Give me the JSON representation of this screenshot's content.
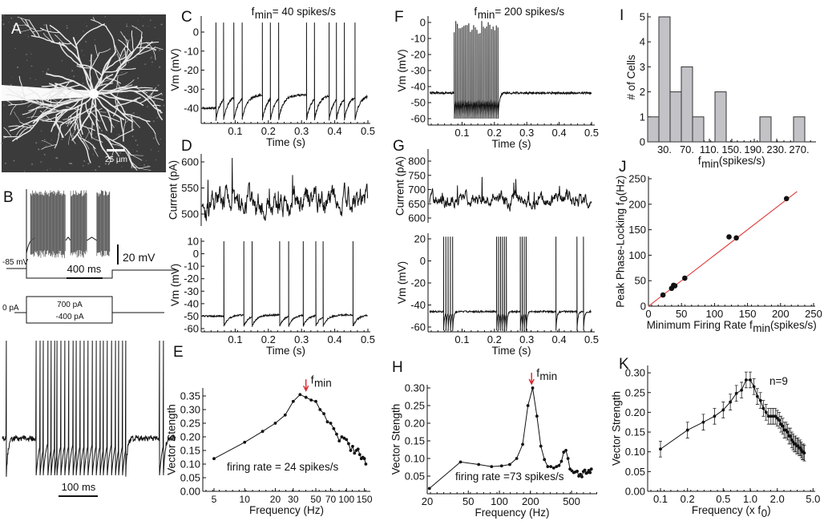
{
  "panel_labels": {
    "A": "A",
    "B": "B",
    "C": "C",
    "D": "D",
    "E": "E",
    "F": "F",
    "G": "G",
    "H": "H",
    "I": "I",
    "J": "J",
    "K": "K"
  },
  "panel_a": {
    "scale_bar_label": "25 µm"
  },
  "panel_b": {
    "resting_label": "-85 mV",
    "current_baseline_label": "0 pA",
    "step_up_label": "700 pA",
    "step_down_label": "-400 pA",
    "voltage_scale_label": "20 mV",
    "time_scale_label": "400 ms",
    "bottom_time_scale_label": "100 ms",
    "burst_windows_ms": [
      [
        45,
        435
      ],
      [
        490,
        670
      ],
      [
        780,
        925
      ]
    ],
    "bottom_trace_spike_times_ms": [
      10,
      86,
      96,
      104,
      116,
      124,
      133,
      139,
      149,
      159,
      169,
      180,
      188,
      198,
      208,
      218,
      229,
      239,
      249,
      257,
      267,
      278,
      288,
      296,
      306,
      314,
      400,
      410
    ]
  },
  "chart_data": [
    {
      "id": "C",
      "type": "line",
      "title": {
        "text": "f",
        "sub": "min",
        "after": " = 40 spikes/s"
      },
      "xlabel": "Time (s)",
      "ylabel": "Vm (mV)",
      "xlim": [
        0,
        0.5
      ],
      "ylim": [
        -48,
        8
      ],
      "xticks": [
        {
          "value": 0.1,
          "label": "0.1"
        },
        {
          "value": 0.2,
          "label": "0.2"
        },
        {
          "value": 0.3,
          "label": "0.3"
        },
        {
          "value": 0.4,
          "label": "0.4"
        },
        {
          "value": 0.5,
          "label": "0.5"
        }
      ],
      "yticks": [
        {
          "value": 0,
          "label": "0"
        },
        {
          "value": -10,
          "label": "-10"
        },
        {
          "value": -20,
          "label": "-20"
        },
        {
          "value": -30,
          "label": "-30"
        },
        {
          "value": -40,
          "label": "-40"
        }
      ],
      "spike_times": [
        0.042,
        0.065,
        0.096,
        0.121,
        0.182,
        0.206,
        0.231,
        0.315,
        0.339,
        0.383,
        0.405,
        0.429,
        0.461
      ],
      "spike_peak": 5,
      "trough": -46,
      "plateau": -33,
      "initial": -40
    },
    {
      "id": "D_current",
      "type": "line",
      "ylabel": "Current (pA)",
      "xlim": [
        0,
        0.5
      ],
      "ylim": [
        480,
        615
      ],
      "yticks": [
        {
          "value": 500,
          "label": "500"
        },
        {
          "value": 550,
          "label": "550"
        },
        {
          "value": 600,
          "label": "600"
        }
      ],
      "mean": 525,
      "range": [
        488,
        610
      ]
    },
    {
      "id": "D_vm",
      "type": "line",
      "xlabel": "Time (s)",
      "ylabel": "Vm (mV)",
      "xlim": [
        0,
        0.5
      ],
      "ylim": [
        -62,
        12
      ],
      "xticks": [
        {
          "value": 0.1,
          "label": "0.1"
        },
        {
          "value": 0.2,
          "label": "0.2"
        },
        {
          "value": 0.3,
          "label": "0.3"
        },
        {
          "value": 0.4,
          "label": "0.4"
        },
        {
          "value": 0.5,
          "label": "0.5"
        }
      ],
      "yticks": [
        {
          "value": 10,
          "label": "10"
        },
        {
          "value": 0,
          "label": "0"
        },
        {
          "value": -10,
          "label": "-10"
        },
        {
          "value": -20,
          "label": "-20"
        },
        {
          "value": -30,
          "label": "-30"
        },
        {
          "value": -40,
          "label": "-40"
        },
        {
          "value": -50,
          "label": "-50"
        },
        {
          "value": -60,
          "label": "-60"
        }
      ],
      "spike_times": [
        0.066,
        0.126,
        0.151,
        0.234,
        0.261,
        0.305,
        0.343,
        0.365,
        0.455
      ],
      "spike_peak": 10,
      "trough": -58,
      "plateau": -49,
      "initial": -50
    },
    {
      "id": "E",
      "type": "line",
      "xlabel": "Frequency (Hz)",
      "ylabel": "Vector Stength",
      "xscale": "log",
      "xlim": [
        4.5,
        165
      ],
      "ylim": [
        0,
        0.37
      ],
      "xticks": [
        {
          "value": 5,
          "label": "5"
        },
        {
          "value": 10,
          "label": "10"
        },
        {
          "value": 20,
          "label": "20"
        },
        {
          "value": 30,
          "label": "30"
        },
        {
          "value": 50,
          "label": "50"
        },
        {
          "value": 70,
          "label": "70"
        },
        {
          "value": 100,
          "label": "100"
        },
        {
          "value": 150,
          "label": "150"
        }
      ],
      "yticks": [
        {
          "value": 0,
          "label": "0.00"
        },
        {
          "value": 0.05,
          "label": "0.05"
        },
        {
          "value": 0.1,
          "label": "0.10"
        },
        {
          "value": 0.15,
          "label": "0.15"
        },
        {
          "value": 0.2,
          "label": "0.20"
        },
        {
          "value": 0.25,
          "label": "0.25"
        },
        {
          "value": 0.3,
          "label": "0.30"
        },
        {
          "value": 0.35,
          "label": "0.35"
        }
      ],
      "x": [
        5,
        10,
        15,
        20,
        25,
        30,
        35,
        40,
        45,
        50,
        55,
        60,
        65,
        70,
        75,
        80,
        85,
        90,
        95,
        100,
        105,
        110,
        115,
        120,
        125,
        130,
        135,
        140,
        145,
        150,
        155
      ],
      "y": [
        0.12,
        0.18,
        0.22,
        0.25,
        0.28,
        0.33,
        0.355,
        0.345,
        0.335,
        0.33,
        0.3,
        0.285,
        0.255,
        0.25,
        0.23,
        0.21,
        0.185,
        0.2,
        0.195,
        0.19,
        0.175,
        0.15,
        0.165,
        0.14,
        0.15,
        0.155,
        0.135,
        0.12,
        0.125,
        0.12,
        0.1
      ],
      "annotation": {
        "text": "firing rate = 24 spikes/s"
      },
      "marker": {
        "label": {
          "text": "f",
          "sub": "min"
        },
        "x": 40,
        "color": "#d8232a"
      }
    },
    {
      "id": "F",
      "type": "line",
      "title": {
        "text": "f",
        "sub": "min",
        "after": " = 200 spikes/s"
      },
      "xlabel": "Time (s)",
      "ylabel": "Vm (mV)",
      "xlim": [
        0,
        0.5
      ],
      "ylim": [
        -64,
        4
      ],
      "xticks": [
        {
          "value": 0.1,
          "label": "0.1"
        },
        {
          "value": 0.2,
          "label": "0.2"
        },
        {
          "value": 0.3,
          "label": "0.3"
        },
        {
          "value": 0.4,
          "label": "0.4"
        },
        {
          "value": 0.5,
          "label": "0.5"
        }
      ],
      "yticks": [
        {
          "value": 0,
          "label": "0"
        },
        {
          "value": -10,
          "label": "-10"
        },
        {
          "value": -20,
          "label": "-20"
        },
        {
          "value": -30,
          "label": "-30"
        },
        {
          "value": -40,
          "label": "-40"
        },
        {
          "value": -50,
          "label": "-50"
        },
        {
          "value": -60,
          "label": "-60"
        }
      ],
      "burst": {
        "start": 0.076,
        "end": 0.216,
        "rate_hz": 200
      },
      "spike_peak_range": [
        -8,
        1
      ],
      "trough": -60,
      "rest": -44
    },
    {
      "id": "G_current",
      "type": "line",
      "ylabel": "Current (pA)",
      "xlim": [
        0,
        0.5
      ],
      "ylim": [
        580,
        845
      ],
      "yticks": [
        {
          "value": 600,
          "label": "600"
        },
        {
          "value": 650,
          "label": "650"
        },
        {
          "value": 700,
          "label": "700"
        },
        {
          "value": 750,
          "label": "750"
        },
        {
          "value": 800,
          "label": "800"
        }
      ],
      "mean": 665,
      "range": [
        588,
        835
      ]
    },
    {
      "id": "G_vm",
      "type": "line",
      "xlabel": "Time (s)",
      "ylabel": "Vm (mV)",
      "xlim": [
        0,
        0.5
      ],
      "ylim": [
        -64,
        25
      ],
      "xticks": [
        {
          "value": 0.1,
          "label": "0.1"
        },
        {
          "value": 0.2,
          "label": "0.2"
        },
        {
          "value": 0.3,
          "label": "0.3"
        },
        {
          "value": 0.4,
          "label": "0.4"
        },
        {
          "value": 0.5,
          "label": "0.5"
        }
      ],
      "yticks": [
        {
          "value": 20,
          "label": "20"
        },
        {
          "value": 0,
          "label": "0"
        },
        {
          "value": -20,
          "label": "-20"
        },
        {
          "value": -40,
          "label": "-40"
        },
        {
          "value": -60,
          "label": "-60"
        }
      ],
      "spike_times": [
        0.043,
        0.05,
        0.057,
        0.064,
        0.071,
        0.207,
        0.213,
        0.219,
        0.225,
        0.231,
        0.237,
        0.28,
        0.286,
        0.292,
        0.298,
        0.39,
        0.455,
        0.475
      ],
      "spike_peak": 22,
      "trough": -63,
      "rest": -46
    },
    {
      "id": "H",
      "type": "line",
      "xlabel": "Frequency (Hz)",
      "ylabel": "Vector Stength",
      "xscale": "log",
      "xlim": [
        20,
        800
      ],
      "ylim": [
        0,
        0.31
      ],
      "xticks": [
        {
          "value": 20,
          "label": "20"
        },
        {
          "value": 50,
          "label": "50"
        },
        {
          "value": 100,
          "label": "100"
        },
        {
          "value": 200,
          "label": "200"
        },
        {
          "value": 500,
          "label": "500"
        }
      ],
      "yticks": [
        {
          "value": 0.05,
          "label": "0.05"
        },
        {
          "value": 0.1,
          "label": "0.10"
        },
        {
          "value": 0.15,
          "label": "0.15"
        },
        {
          "value": 0.2,
          "label": "0.20"
        },
        {
          "value": 0.25,
          "label": "0.25"
        },
        {
          "value": 0.3,
          "label": "0.30"
        }
      ],
      "x": [
        21,
        42,
        63,
        84,
        105,
        126,
        147,
        168,
        189,
        210,
        231,
        252,
        273,
        294,
        315,
        336,
        357,
        378,
        399,
        420,
        441,
        462,
        483,
        504,
        525,
        546,
        567,
        588,
        609,
        630,
        651,
        672,
        693,
        714,
        735,
        756,
        777
      ],
      "y": [
        0.015,
        0.09,
        0.083,
        0.077,
        0.079,
        0.083,
        0.1,
        0.14,
        0.25,
        0.3,
        0.22,
        0.135,
        0.097,
        0.077,
        0.077,
        0.073,
        0.077,
        0.08,
        0.092,
        0.118,
        0.123,
        0.1,
        0.07,
        0.065,
        0.06,
        0.062,
        0.064,
        0.05,
        0.055,
        0.048,
        0.063,
        0.067,
        0.058,
        0.06,
        0.066,
        0.06,
        0.07
      ],
      "annotation": {
        "text": "firing rate =73 spikes/s"
      },
      "marker": {
        "label": {
          "text": "f",
          "sub": "min"
        },
        "x": 205,
        "color": "#d8232a"
      }
    },
    {
      "id": "I",
      "type": "bar",
      "xlabel": {
        "text": "f",
        "sub": "min",
        "after": " (spikes/s)"
      },
      "ylabel": "# of Cells",
      "xlim": [
        0,
        290
      ],
      "ylim": [
        0,
        5
      ],
      "xticks": [
        {
          "value": 30,
          "label": "30."
        },
        {
          "value": 70,
          "label": "70."
        },
        {
          "value": 110,
          "label": "110."
        },
        {
          "value": 150,
          "label": "150."
        },
        {
          "value": 190,
          "label": "190."
        },
        {
          "value": 230,
          "label": "230."
        },
        {
          "value": 270,
          "label": "270."
        }
      ],
      "yticks": [
        {
          "value": 0,
          "label": "0"
        },
        {
          "value": 1,
          "label": "1"
        },
        {
          "value": 2,
          "label": "2"
        },
        {
          "value": 3,
          "label": "3"
        },
        {
          "value": 4,
          "label": "4"
        },
        {
          "value": 5,
          "label": "5"
        }
      ],
      "bin_width": 20,
      "bins": [
        {
          "start": 0,
          "count": 1
        },
        {
          "start": 20,
          "count": 5
        },
        {
          "start": 40,
          "count": 2
        },
        {
          "start": 60,
          "count": 3
        },
        {
          "start": 80,
          "count": 1
        },
        {
          "start": 120,
          "count": 2
        },
        {
          "start": 200,
          "count": 1
        },
        {
          "start": 260,
          "count": 1
        }
      ],
      "bar_color": "#c3c3c7"
    },
    {
      "id": "J",
      "type": "scatter",
      "xlabel": {
        "text": "Minimum Firing Rate f",
        "sub": "min",
        "after": " (spikes/s)"
      },
      "ylabel": {
        "text": "Peak Phase-Locking f",
        "sub": "0",
        "after": " (Hz)"
      },
      "xlim": [
        0,
        250
      ],
      "ylim": [
        0,
        250
      ],
      "xticks": [
        {
          "value": 0,
          "label": "0"
        },
        {
          "value": 50,
          "label": "50"
        },
        {
          "value": 100,
          "label": "100"
        },
        {
          "value": 150,
          "label": "150"
        },
        {
          "value": 200,
          "label": "200"
        },
        {
          "value": 250,
          "label": "250"
        }
      ],
      "yticks": [
        {
          "value": 0,
          "label": "0"
        },
        {
          "value": 50,
          "label": "50"
        },
        {
          "value": 100,
          "label": "100"
        },
        {
          "value": 150,
          "label": "150"
        },
        {
          "value": 200,
          "label": "200"
        },
        {
          "value": 250,
          "label": "250"
        }
      ],
      "x": [
        22,
        35,
        38,
        40,
        55,
        122,
        133,
        209
      ],
      "y": [
        22,
        35,
        41,
        40,
        55,
        136,
        134,
        211
      ],
      "fit_line": {
        "slope": 1,
        "intercept": 0,
        "x_range": [
          0,
          225
        ],
        "color": "#e03a3a"
      }
    },
    {
      "id": "K",
      "type": "line",
      "xlabel": {
        "text": "Frequency (x f",
        "sub": "0",
        "after": ")"
      },
      "ylabel": "Vector Strength",
      "xscale": "log",
      "xlim": [
        0.07,
        5
      ],
      "ylim": [
        0,
        0.31
      ],
      "xticks": [
        {
          "value": 0.1,
          "label": "0.1"
        },
        {
          "value": 0.2,
          "label": "0.2"
        },
        {
          "value": 0.5,
          "label": "0.5"
        },
        {
          "value": 1,
          "label": "1.0"
        },
        {
          "value": 2,
          "label": "2.0"
        },
        {
          "value": 5,
          "label": "5.0"
        }
      ],
      "yticks": [
        {
          "value": 0,
          "label": "0.00"
        },
        {
          "value": 0.05,
          "label": "0.05"
        },
        {
          "value": 0.1,
          "label": "0.10"
        },
        {
          "value": 0.15,
          "label": "0.15"
        },
        {
          "value": 0.2,
          "label": "0.20"
        },
        {
          "value": 0.25,
          "label": "0.25"
        },
        {
          "value": 0.3,
          "label": "0.30"
        }
      ],
      "x": [
        0.1,
        0.2,
        0.3,
        0.4,
        0.5,
        0.6,
        0.7,
        0.8,
        0.9,
        1.0,
        1.1,
        1.2,
        1.3,
        1.4,
        1.5,
        1.6,
        1.7,
        1.8,
        1.9,
        2.0,
        2.1,
        2.2,
        2.3,
        2.4,
        2.5,
        2.6,
        2.7,
        2.8,
        2.9,
        3.0,
        3.1,
        3.2,
        3.3,
        3.4,
        3.5,
        3.6,
        3.7,
        3.8,
        3.9,
        4.0
      ],
      "y": [
        0.107,
        0.155,
        0.175,
        0.19,
        0.206,
        0.226,
        0.248,
        0.256,
        0.282,
        0.282,
        0.265,
        0.24,
        0.23,
        0.21,
        0.2,
        0.19,
        0.19,
        0.19,
        0.19,
        0.185,
        0.18,
        0.17,
        0.165,
        0.155,
        0.155,
        0.15,
        0.14,
        0.14,
        0.13,
        0.125,
        0.12,
        0.12,
        0.115,
        0.115,
        0.11,
        0.11,
        0.105,
        0.1,
        0.1,
        0.097
      ],
      "error": 0.02,
      "annotation": {
        "text": "n=9"
      }
    }
  ]
}
